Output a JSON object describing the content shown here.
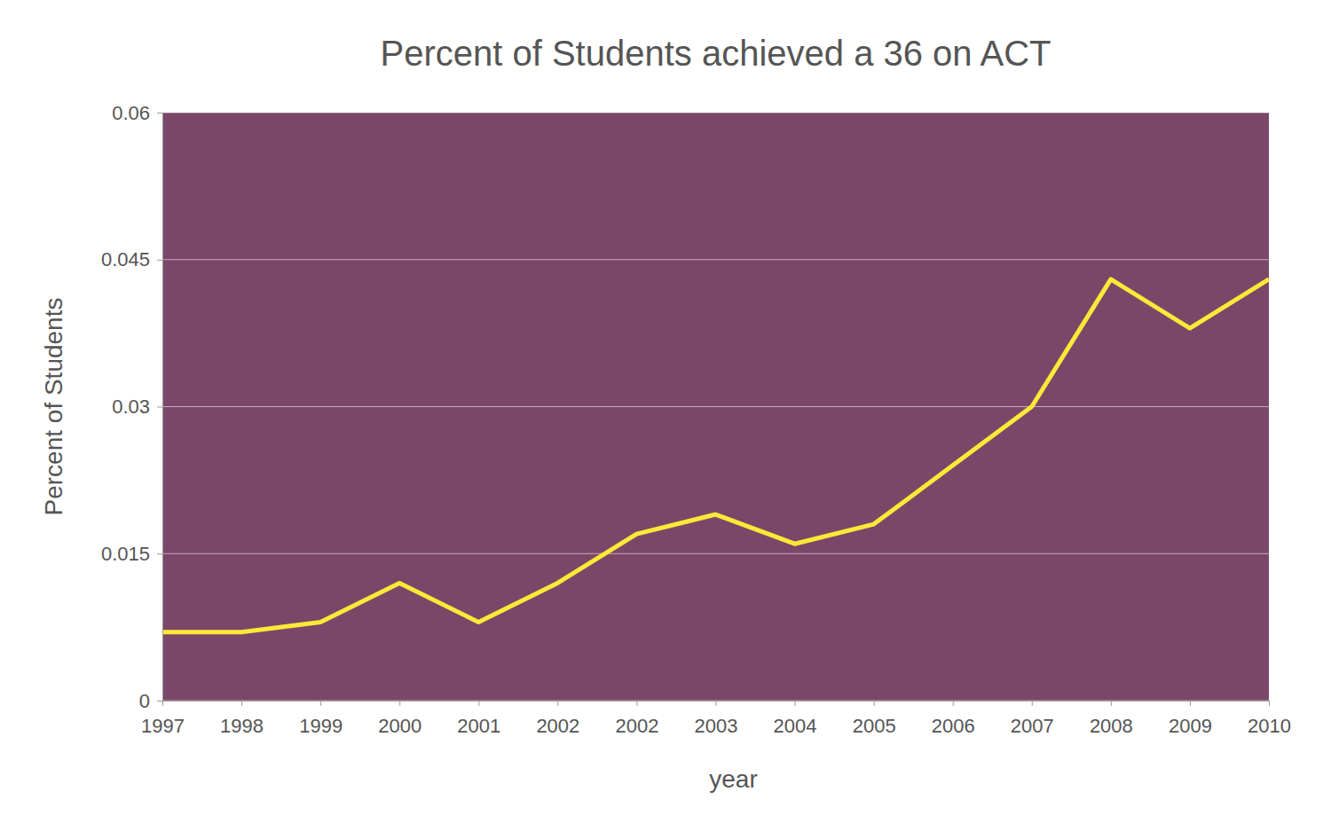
{
  "chart_data": {
    "type": "line",
    "title": "Percent of Students achieved a 36 on ACT",
    "x_label": "year",
    "y_label": "Percent of Students",
    "categories": [
      "1997",
      "1998",
      "1999",
      "2000",
      "2001",
      "2002",
      "2002",
      "2003",
      "2004",
      "2005",
      "2006",
      "2007",
      "2008",
      "2009",
      "2010"
    ],
    "values": [
      0.007,
      0.007,
      0.008,
      0.012,
      0.008,
      0.012,
      0.017,
      0.019,
      0.016,
      0.018,
      0.024,
      0.03,
      0.043,
      0.038,
      0.043
    ],
    "color": "#ffe838",
    "ylim": [
      0,
      0.06
    ],
    "yticks": [
      0,
      0.015,
      0.03,
      0.045,
      0.06
    ],
    "grid": true
  }
}
